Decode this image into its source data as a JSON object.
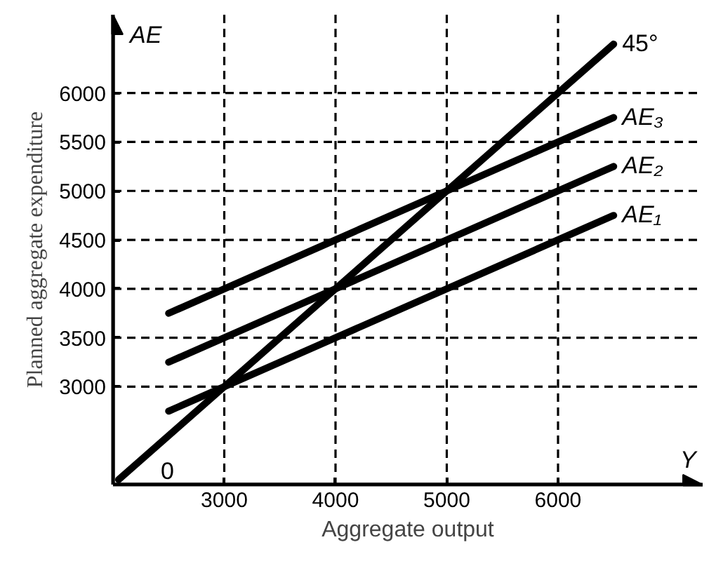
{
  "chart_data": {
    "type": "line",
    "xlabel": "Aggregate output",
    "ylabel": "Planned aggregate expenditure",
    "xlim": [
      2000,
      7300
    ],
    "ylim": [
      2000,
      6800
    ],
    "xticks": [
      3000,
      4000,
      5000,
      6000
    ],
    "yticks": [
      3000,
      3500,
      4000,
      4500,
      5000,
      5500,
      6000
    ],
    "grid": false,
    "marker": "none",
    "line_style": "solid",
    "series": [
      {
        "name": "45°",
        "color": "#000000",
        "x": [
          2050,
          6500
        ],
        "values": [
          2050,
          6500
        ]
      },
      {
        "name": "AE₃",
        "color": "#000000",
        "x": [
          2500,
          6500
        ],
        "values": [
          3750,
          5750
        ]
      },
      {
        "name": "AE₂",
        "color": "#000000",
        "x": [
          2500,
          6500
        ],
        "values": [
          3250,
          5250
        ]
      },
      {
        "name": "AE₁",
        "color": "#000000",
        "x": [
          2500,
          6500
        ],
        "values": [
          2750,
          4750
        ]
      }
    ],
    "ref_lines": [
      {
        "axis": "x",
        "value": 3000,
        "line_style": "dashed",
        "color": "#000000"
      },
      {
        "axis": "x",
        "value": 4000,
        "line_style": "dashed",
        "color": "#000000"
      },
      {
        "axis": "x",
        "value": 5000,
        "line_style": "dashed",
        "color": "#000000"
      },
      {
        "axis": "x",
        "value": 6000,
        "line_style": "dashed",
        "color": "#000000"
      },
      {
        "axis": "y",
        "value": 3000,
        "line_style": "dashed",
        "color": "#000000"
      },
      {
        "axis": "y",
        "value": 3500,
        "line_style": "dashed",
        "color": "#000000"
      },
      {
        "axis": "y",
        "value": 4000,
        "line_style": "dashed",
        "color": "#000000"
      },
      {
        "axis": "y",
        "value": 4500,
        "line_style": "dashed",
        "color": "#000000"
      },
      {
        "axis": "y",
        "value": 5000,
        "line_style": "dashed",
        "color": "#000000"
      },
      {
        "axis": "y",
        "value": 5500,
        "line_style": "dashed",
        "color": "#000000"
      },
      {
        "axis": "y",
        "value": 6000,
        "line_style": "dashed",
        "color": "#000000"
      }
    ],
    "annotations": [
      "AE",
      "Y",
      "0"
    ]
  }
}
